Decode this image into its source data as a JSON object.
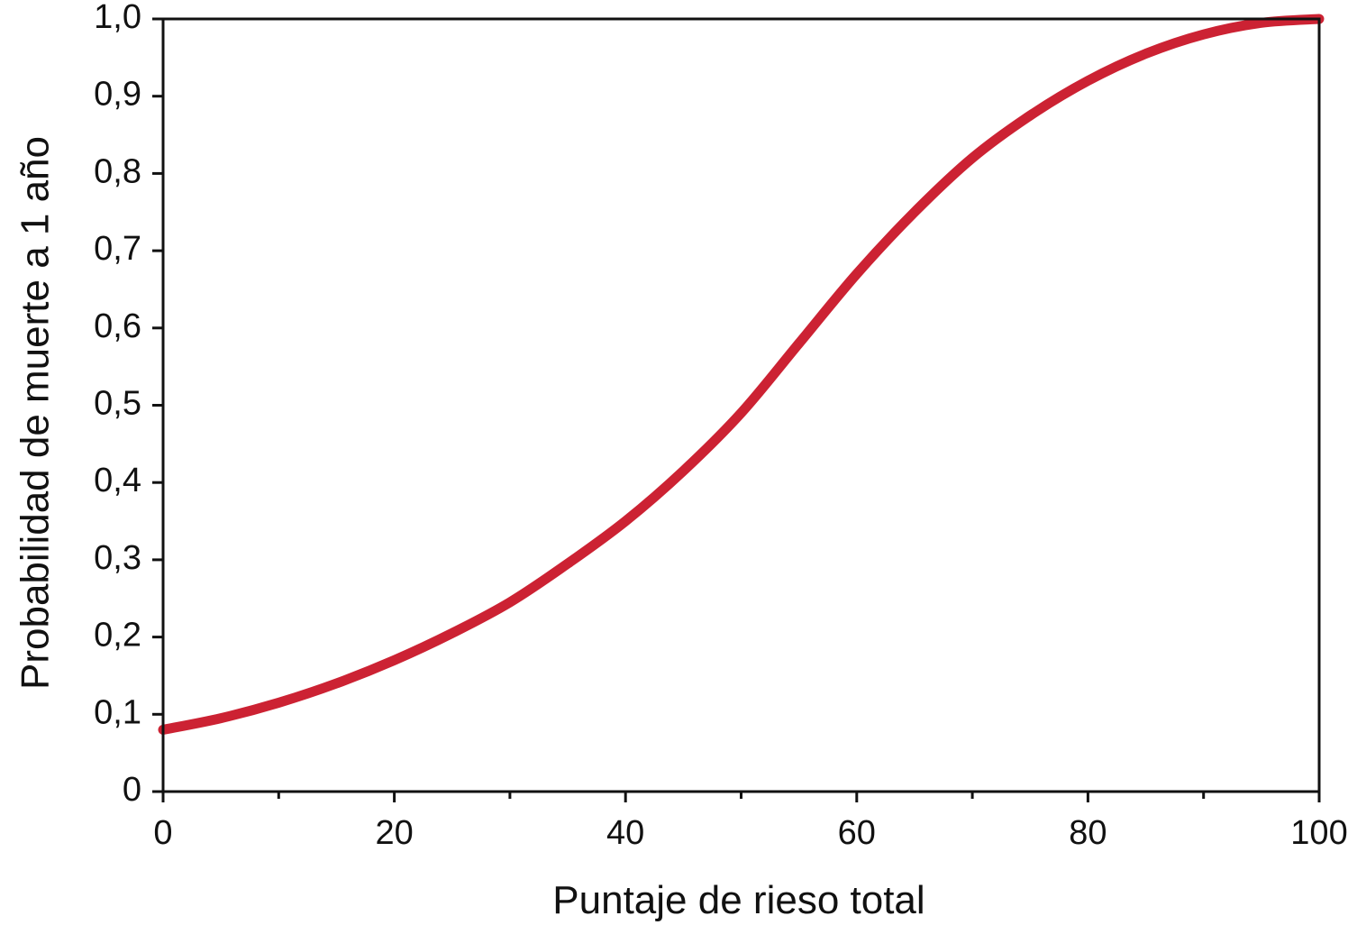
{
  "chart_data": {
    "type": "line",
    "title": "",
    "xlabel": "Puntaje de rieso total",
    "ylabel": "Probabilidad de muerte a 1 año",
    "xlim": [
      0,
      100
    ],
    "ylim": [
      0,
      1
    ],
    "x_ticks": [
      0,
      20,
      40,
      60,
      80,
      100
    ],
    "x_minor_ticks": [
      10,
      30,
      50,
      70,
      90
    ],
    "x_tick_labels": [
      "0",
      "20",
      "40",
      "60",
      "80",
      "100"
    ],
    "y_ticks": [
      0,
      0.1,
      0.2,
      0.3,
      0.4,
      0.5,
      0.6,
      0.7,
      0.8,
      0.9,
      1.0
    ],
    "y_tick_labels": [
      "0",
      "0,1",
      "0,2",
      "0,3",
      "0,4",
      "0,5",
      "0,6",
      "0,7",
      "0,8",
      "0,9",
      "1,0"
    ],
    "grid": false,
    "legend": "none",
    "series": [
      {
        "color": "#cc2233",
        "x": [
          0,
          5,
          10,
          15,
          20,
          25,
          30,
          35,
          40,
          45,
          50,
          55,
          60,
          65,
          70,
          75,
          80,
          85,
          90,
          95,
          100
        ],
        "y": [
          0.08,
          0.095,
          0.115,
          0.14,
          0.17,
          0.205,
          0.245,
          0.295,
          0.35,
          0.415,
          0.49,
          0.58,
          0.67,
          0.75,
          0.82,
          0.875,
          0.92,
          0.955,
          0.98,
          0.995,
          1.0
        ]
      }
    ]
  }
}
